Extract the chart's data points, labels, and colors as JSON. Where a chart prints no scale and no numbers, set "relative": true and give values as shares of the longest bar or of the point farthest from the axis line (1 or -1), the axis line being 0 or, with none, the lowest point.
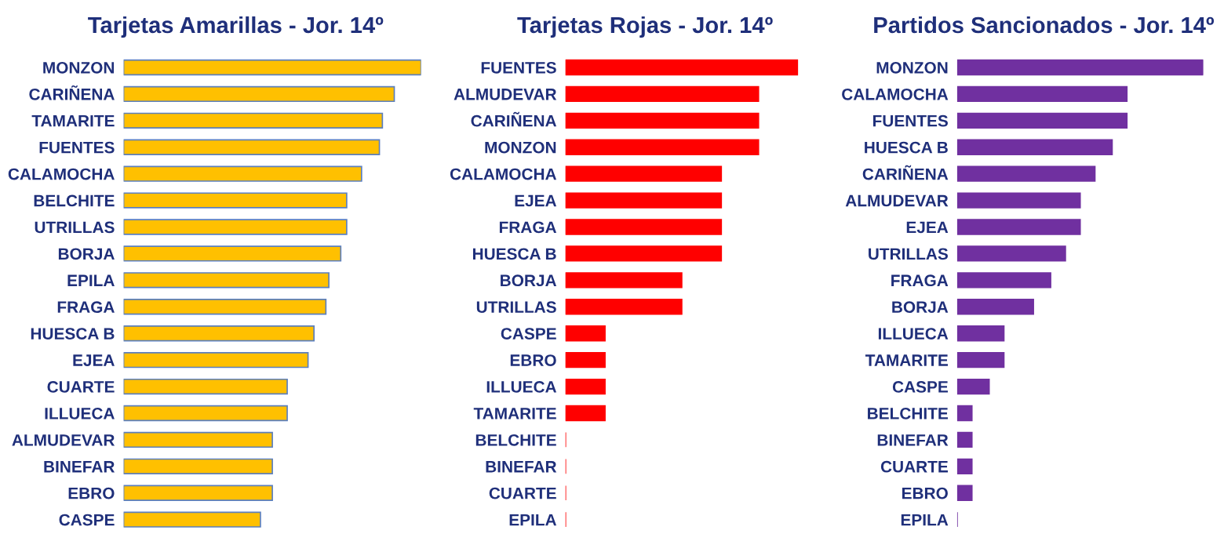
{
  "chart_data": [
    {
      "type": "bar",
      "orientation": "horizontal",
      "relative": true,
      "title": "Tarjetas Amarillas - Jor. 14º",
      "categories": [
        "MONZON",
        "CARIÑENA",
        "TAMARITE",
        "FUENTES",
        "CALAMOCHA",
        "BELCHITE",
        "UTRILLAS",
        "BORJA",
        "EPILA",
        "FRAGA",
        "HUESCA B",
        "EJEA",
        "CUARTE",
        "ILLUECA",
        "ALMUDEVAR",
        "BINEFAR",
        "EBRO",
        "CASPE"
      ],
      "values": [
        1,
        0.91,
        0.87,
        0.86,
        0.8,
        0.75,
        0.75,
        0.73,
        0.69,
        0.68,
        0.64,
        0.62,
        0.55,
        0.55,
        0.5,
        0.5,
        0.5,
        0.46
      ],
      "color": "#ffc000",
      "grid": false,
      "legend": false
    },
    {
      "type": "bar",
      "orientation": "horizontal",
      "relative": true,
      "title": "Tarjetas Rojas - Jor. 14º",
      "categories": [
        "FUENTES",
        "ALMUDEVAR",
        "CARIÑENA",
        "MONZON",
        "CALAMOCHA",
        "EJEA",
        "FRAGA",
        "HUESCA B",
        "BORJA",
        "UTRILLAS",
        "CASPE",
        "EBRO",
        "ILLUECA",
        "TAMARITE",
        "BELCHITE",
        "BINEFAR",
        "CUARTE",
        "EPILA"
      ],
      "values": [
        1,
        0.83,
        0.83,
        0.83,
        0.67,
        0.67,
        0.67,
        0.67,
        0.5,
        0.5,
        0.17,
        0.17,
        0.17,
        0.17,
        0,
        0,
        0,
        0
      ],
      "color": "#ff0000",
      "grid": false,
      "legend": false
    },
    {
      "type": "bar",
      "orientation": "horizontal",
      "relative": true,
      "title": "Partidos Sancionados - Jor. 14º",
      "categories": [
        "MONZON",
        "CALAMOCHA",
        "FUENTES",
        "HUESCA B",
        "CARIÑENA",
        "ALMUDEVAR",
        "EJEA",
        "UTRILLAS",
        "FRAGA",
        "BORJA",
        "ILLUECA",
        "TAMARITE",
        "CASPE",
        "BELCHITE",
        "BINEFAR",
        "CUARTE",
        "EBRO",
        "EPILA"
      ],
      "values": [
        1,
        0.69,
        0.69,
        0.63,
        0.56,
        0.5,
        0.5,
        0.44,
        0.38,
        0.31,
        0.19,
        0.19,
        0.13,
        0.06,
        0.06,
        0.06,
        0.06,
        0
      ],
      "color": "#7030a0",
      "grid": false,
      "legend": false
    }
  ]
}
